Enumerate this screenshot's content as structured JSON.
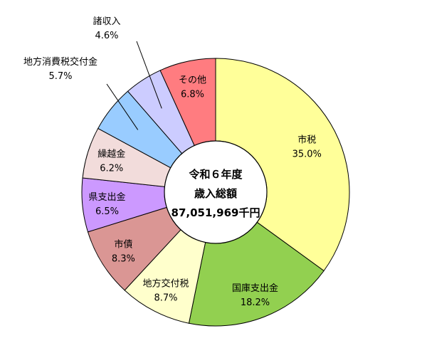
{
  "chart_data": {
    "type": "pie",
    "center": {
      "line1": "令和６年度",
      "line2": "歳入総額",
      "line3": "87,051,969千円"
    },
    "slices": [
      {
        "name": "市税",
        "value": 35.0,
        "label": "35.0%",
        "color": "#ffff99"
      },
      {
        "name": "国庫支出金",
        "value": 18.2,
        "label": "18.2%",
        "color": "#92d050"
      },
      {
        "name": "地方交付税",
        "value": 8.7,
        "label": "8.7%",
        "color": "#ffffcc"
      },
      {
        "name": "市債",
        "value": 8.3,
        "label": "8.3%",
        "color": "#da9694"
      },
      {
        "name": "県支出金",
        "value": 6.5,
        "label": "6.5%",
        "color": "#cc99ff"
      },
      {
        "name": "繰越金",
        "value": 6.2,
        "label": "6.2%",
        "color": "#f2dcdb"
      },
      {
        "name": "地方消費税交付金",
        "value": 5.7,
        "label": "5.7%",
        "color": "#99ccff"
      },
      {
        "name": "諸収入",
        "value": 4.6,
        "label": "4.6%",
        "color": "#ccccff"
      },
      {
        "name": "その他",
        "value": 6.8,
        "label": "6.8%",
        "color": "#ff7c80"
      }
    ]
  }
}
